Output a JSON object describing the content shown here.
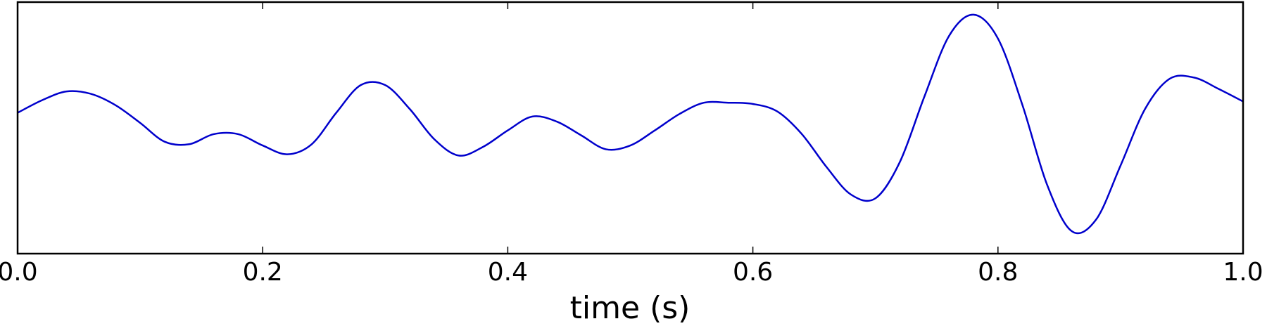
{
  "chart_data": {
    "type": "line",
    "xlabel": "time (s)",
    "x": [
      0,
      0.02,
      0.04,
      0.06,
      0.08,
      0.1,
      0.12,
      0.14,
      0.16,
      0.18,
      0.2,
      0.22,
      0.24,
      0.26,
      0.28,
      0.3,
      0.32,
      0.34,
      0.36,
      0.38,
      0.4,
      0.42,
      0.44,
      0.46,
      0.48,
      0.5,
      0.52,
      0.54,
      0.56,
      0.58,
      0.6,
      0.62,
      0.64,
      0.66,
      0.68,
      0.7,
      0.72,
      0.74,
      0.76,
      0.78,
      0.8,
      0.82,
      0.84,
      0.86,
      0.88,
      0.9,
      0.92,
      0.94,
      0.96,
      0.98,
      1
    ],
    "values": [
      0.12,
      0.22,
      0.29,
      0.27,
      0.18,
      0.04,
      -0.11,
      -0.13,
      -0.05,
      -0.05,
      -0.14,
      -0.21,
      -0.13,
      0.12,
      0.34,
      0.34,
      0.15,
      -0.09,
      -0.22,
      -0.15,
      -0.02,
      0.09,
      0.05,
      -0.06,
      -0.17,
      -0.14,
      -0.02,
      0.11,
      0.2,
      0.2,
      0.19,
      0.13,
      -0.05,
      -0.31,
      -0.53,
      -0.56,
      -0.27,
      0.25,
      0.73,
      0.9,
      0.71,
      0.18,
      -0.45,
      -0.82,
      -0.73,
      -0.3,
      0.15,
      0.39,
      0.4,
      0.31,
      0.21
    ],
    "color": "#0000cc",
    "xlim": [
      0,
      1
    ],
    "ylim": [
      -1,
      1
    ],
    "xticks": [
      {
        "value": 0,
        "label": "0.0"
      },
      0.2,
      0.4,
      0.6,
      0.8,
      {
        "value": 1,
        "label": "1.0"
      }
    ]
  }
}
